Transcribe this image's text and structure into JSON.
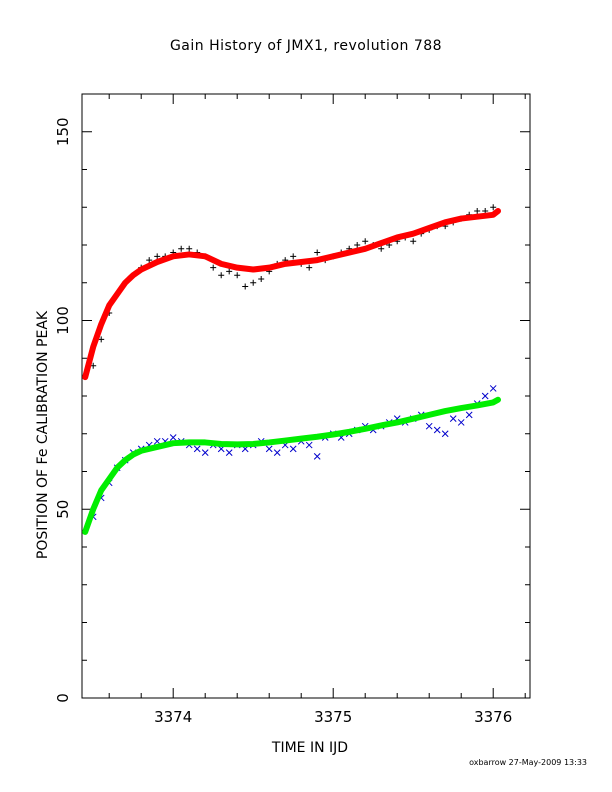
{
  "chart_data": {
    "type": "scatter",
    "title": "Gain History of JMX1, revolution 788",
    "xlabel": "TIME IN IJD",
    "ylabel": "POSITION OF Fe CALIBRATION PEAK",
    "xlim": [
      3373.43,
      3376.23
    ],
    "ylim": [
      0,
      160
    ],
    "xticks": [
      3374,
      3375,
      3376
    ],
    "xtick_labels": [
      "3374",
      "3375",
      "3376"
    ],
    "yticks": [
      0,
      50,
      100,
      150
    ],
    "ytick_labels": [
      "0",
      "50",
      "100",
      "150"
    ],
    "grid": false,
    "legend": "none",
    "series": [
      {
        "marker": "plus",
        "color": "#000000",
        "x": [
          3373.5,
          3373.55,
          3373.6,
          3373.65,
          3373.7,
          3373.75,
          3373.8,
          3373.85,
          3373.9,
          3373.95,
          3374.0,
          3374.05,
          3374.1,
          3374.15,
          3374.2,
          3374.25,
          3374.3,
          3374.35,
          3374.4,
          3374.45,
          3374.5,
          3374.55,
          3374.6,
          3374.65,
          3374.7,
          3374.75,
          3374.8,
          3374.85,
          3374.9,
          3374.95,
          3375.0,
          3375.05,
          3375.1,
          3375.15,
          3375.2,
          3375.25,
          3375.3,
          3375.35,
          3375.4,
          3375.45,
          3375.5,
          3375.55,
          3375.6,
          3375.65,
          3375.7,
          3375.75,
          3375.8,
          3375.85,
          3375.9,
          3375.95,
          3376.0
        ],
        "y": [
          88,
          95,
          102,
          107,
          110,
          112,
          114,
          116,
          117,
          117,
          118,
          119,
          119,
          118,
          117,
          114,
          112,
          113,
          112,
          109,
          110,
          111,
          113,
          115,
          116,
          117,
          115,
          114,
          118,
          116,
          117,
          118,
          119,
          120,
          121,
          120,
          119,
          120,
          121,
          122,
          121,
          123,
          124,
          125,
          125,
          126,
          127,
          128,
          129,
          129,
          130
        ]
      },
      {
        "marker": "cross",
        "color": "#0000cc",
        "x": [
          3373.5,
          3373.55,
          3373.6,
          3373.65,
          3373.7,
          3373.75,
          3373.8,
          3373.85,
          3373.9,
          3373.95,
          3374.0,
          3374.05,
          3374.1,
          3374.15,
          3374.2,
          3374.25,
          3374.3,
          3374.35,
          3374.4,
          3374.45,
          3374.5,
          3374.55,
          3374.6,
          3374.65,
          3374.7,
          3374.75,
          3374.8,
          3374.85,
          3374.9,
          3374.95,
          3375.0,
          3375.05,
          3375.1,
          3375.15,
          3375.2,
          3375.25,
          3375.3,
          3375.35,
          3375.4,
          3375.45,
          3375.5,
          3375.55,
          3375.6,
          3375.65,
          3375.7,
          3375.75,
          3375.8,
          3375.85,
          3375.9,
          3375.95,
          3376.0
        ],
        "y": [
          48,
          53,
          57,
          61,
          63,
          65,
          66,
          67,
          68,
          68,
          69,
          68,
          67,
          66,
          65,
          67,
          66,
          65,
          67,
          66,
          67,
          68,
          66,
          65,
          67,
          66,
          68,
          67,
          64,
          69,
          70,
          69,
          70,
          71,
          72,
          71,
          72,
          73,
          74,
          73,
          74,
          75,
          72,
          71,
          70,
          74,
          73,
          75,
          78,
          80,
          82
        ]
      },
      {
        "marker": "line",
        "color": "#ff0000",
        "x": [
          3373.45,
          3373.5,
          3373.55,
          3373.6,
          3373.65,
          3373.7,
          3373.75,
          3373.8,
          3373.9,
          3374.0,
          3374.1,
          3374.2,
          3374.3,
          3374.4,
          3374.5,
          3374.6,
          3374.7,
          3374.8,
          3374.9,
          3375.0,
          3375.1,
          3375.2,
          3375.3,
          3375.4,
          3375.5,
          3375.6,
          3375.7,
          3375.8,
          3375.9,
          3376.0,
          3376.03
        ],
        "y": [
          85,
          93,
          99,
          104,
          107,
          110,
          112,
          113.5,
          115.5,
          117,
          117.5,
          117,
          115,
          114,
          113.5,
          114,
          115,
          115.5,
          116,
          117,
          118,
          119,
          120.5,
          122,
          123,
          124.5,
          126,
          127,
          127.5,
          128,
          129
        ]
      },
      {
        "marker": "line",
        "color": "#00ee00",
        "x": [
          3373.45,
          3373.5,
          3373.55,
          3373.6,
          3373.65,
          3373.7,
          3373.75,
          3373.8,
          3373.9,
          3374.0,
          3374.1,
          3374.2,
          3374.3,
          3374.4,
          3374.5,
          3374.6,
          3374.7,
          3374.8,
          3374.9,
          3375.0,
          3375.1,
          3375.2,
          3375.3,
          3375.4,
          3375.5,
          3375.6,
          3375.7,
          3375.8,
          3375.9,
          3376.0,
          3376.03
        ],
        "y": [
          44,
          50,
          55,
          58,
          61,
          63,
          64.5,
          65.5,
          66.5,
          67.5,
          67.7,
          67.7,
          67.3,
          67.2,
          67.3,
          67.7,
          68.2,
          68.7,
          69.2,
          69.8,
          70.5,
          71.3,
          72.2,
          73.0,
          74.0,
          75.0,
          76.0,
          76.8,
          77.5,
          78.3,
          79
        ]
      }
    ]
  },
  "footer": "oxbarrow 27-May-2009 13:33"
}
